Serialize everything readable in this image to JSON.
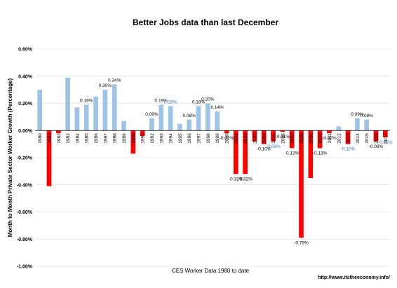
{
  "chart_data": {
    "type": "bar",
    "title": "Better Jobs data than last December",
    "ylabel": "Month to Month Private Sector Worker Growth (Percentage)",
    "xlabel": "CES Worker Data 1980 to date",
    "source_url": "http://www.itstheeconomy.info/",
    "ylim": [
      -1.0,
      0.6
    ],
    "y_ticks": [
      0.6,
      0.4,
      0.2,
      0.0,
      -0.2,
      -0.4,
      -0.6,
      -0.8,
      -1.0
    ],
    "y_tick_labels": [
      "0.60%",
      "0.40%",
      "0.20%",
      "0.00%",
      "-0.20%",
      "-0.40%",
      "-0.60%",
      "-0.80%",
      "-1.00%"
    ],
    "grid": true,
    "legend": "none",
    "colors": {
      "positive": "#9dc3e6",
      "negative": "#ff0000",
      "highlight_label": "#3a78c0"
    },
    "categories": [
      "1980",
      "1981",
      "1982",
      "1983",
      "1984",
      "1985",
      "1986",
      "1987",
      "1988",
      "1989",
      "1990",
      "1991",
      "1992",
      "1993",
      "1994",
      "1995",
      "1996",
      "1997",
      "1998",
      "1999",
      "2000",
      "2001",
      "2002",
      "2003",
      "2004",
      "2005",
      "2006",
      "2007",
      "2008",
      "2009",
      "2010",
      "2011",
      "2012",
      "2013",
      "2014",
      "2015",
      "2016",
      "2017"
    ],
    "category_labels": [
      "1980",
      "1981",
      "1982",
      "1983",
      "1984",
      "1985",
      "1986",
      "1987",
      "1988",
      "1989",
      "1990",
      "1991",
      "1992",
      "1993",
      "1994",
      "1995",
      "1996",
      "1997",
      "1998",
      "1999",
      "2000",
      "2001",
      "2002",
      "2003",
      "2004",
      "2005",
      "2006",
      "2007",
      "2008",
      "2009",
      "2010",
      "2011",
      "2012",
      "2013",
      "2014",
      "2015",
      "2016",
      "2017"
    ],
    "values": [
      0.3,
      -0.41,
      -0.02,
      0.39,
      0.17,
      0.19,
      0.25,
      0.3,
      0.34,
      0.07,
      -0.17,
      -0.04,
      0.09,
      0.19,
      0.18,
      0.05,
      0.08,
      0.18,
      0.2,
      0.14,
      -0.02,
      -0.32,
      -0.32,
      -0.08,
      -0.1,
      -0.08,
      -0.01,
      -0.13,
      -0.79,
      -0.35,
      -0.13,
      -0.02,
      0.03,
      -0.1,
      0.09,
      0.08,
      -0.08,
      -0.05
    ],
    "data_labels": [
      {
        "index": 5,
        "text": "0.19%",
        "color": "black"
      },
      {
        "index": 7,
        "text": "0.30%",
        "color": "black"
      },
      {
        "index": 8,
        "text": "0.34%",
        "color": "black"
      },
      {
        "index": 12,
        "text": "0.09%",
        "color": "black"
      },
      {
        "index": 13,
        "text": "0.19%",
        "color": "black"
      },
      {
        "index": 14,
        "text": "0.18%",
        "color": "blue"
      },
      {
        "index": 16,
        "text": "0.08%",
        "color": "black"
      },
      {
        "index": 17,
        "text": "0.18%",
        "color": "black"
      },
      {
        "index": 18,
        "text": "0.20%",
        "color": "black"
      },
      {
        "index": 19,
        "text": "0.14%",
        "color": "black"
      },
      {
        "index": 20,
        "text": "-0.02%",
        "color": "black"
      },
      {
        "index": 21,
        "text": "-0.32%",
        "color": "black"
      },
      {
        "index": 22,
        "text": "-0.32%",
        "color": "black"
      },
      {
        "index": 24,
        "text": "-0.10%",
        "color": "black"
      },
      {
        "index": 25,
        "text": "-0.08%",
        "color": "blue"
      },
      {
        "index": 26,
        "text": "-0.01%",
        "color": "black"
      },
      {
        "index": 27,
        "text": "-0.13%",
        "color": "black"
      },
      {
        "index": 28,
        "text": "-0.79%",
        "color": "black"
      },
      {
        "index": 30,
        "text": "-0.13%",
        "color": "black"
      },
      {
        "index": 31,
        "text": "-0.02%",
        "color": "black"
      },
      {
        "index": 33,
        "text": "-0.10%",
        "color": "blue"
      },
      {
        "index": 34,
        "text": "0.09%",
        "color": "black"
      },
      {
        "index": 35,
        "text": "0.08%",
        "color": "black"
      },
      {
        "index": 36,
        "text": "-0.08%",
        "color": "black"
      },
      {
        "index": 37,
        "text": "-0.05%",
        "color": "blue"
      }
    ]
  }
}
